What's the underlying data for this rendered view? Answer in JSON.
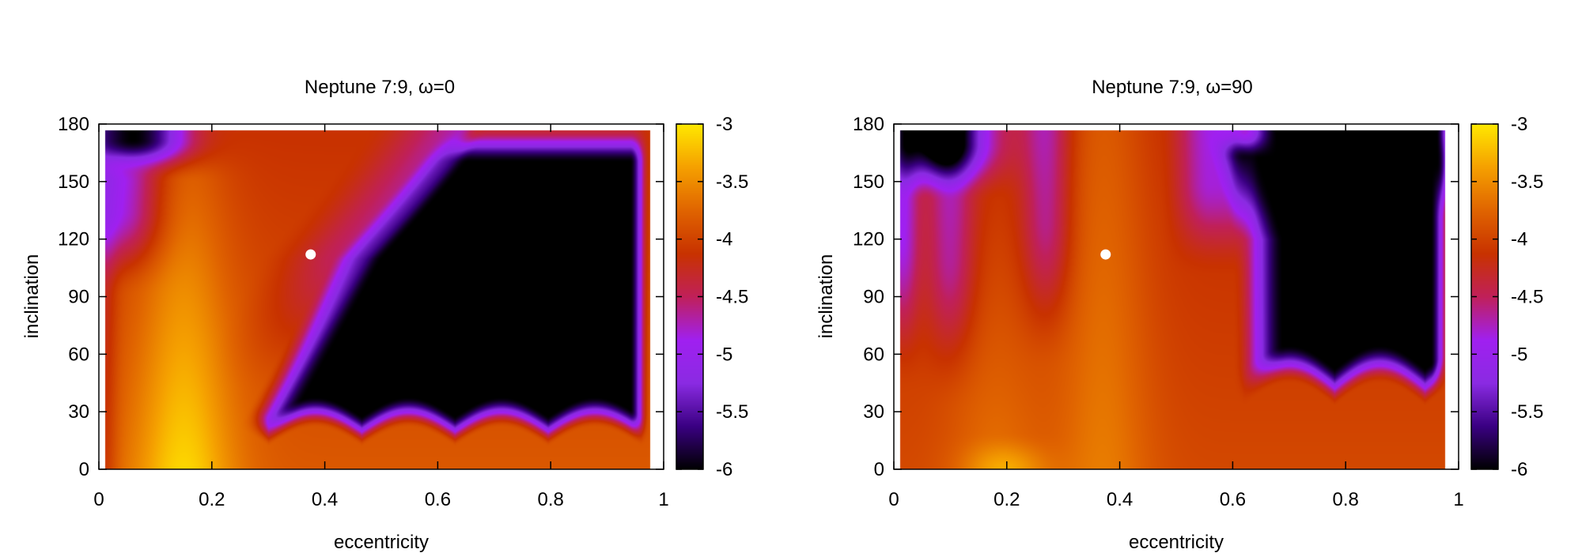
{
  "chart_data": [
    {
      "type": "heatmap",
      "title": "Neptune 7:9, ω=0",
      "xlabel": "eccentricity",
      "ylabel": "inclination",
      "xlim": [
        0,
        1
      ],
      "ylim": [
        0,
        180
      ],
      "xticks": [
        "0",
        "0.2",
        "0.4",
        "0.6",
        "0.8",
        "1"
      ],
      "yticks": [
        "0",
        "30",
        "60",
        "90",
        "120",
        "150",
        "180"
      ],
      "colorbar": {
        "range": [
          -6,
          -3
        ],
        "ticks": [
          "-3",
          "-3.5",
          "-4",
          "-4.5",
          "-5",
          "-5.5",
          "-6"
        ],
        "palette": [
          "#000000",
          "#3a0082",
          "#8a2be2",
          "#a020f0",
          "#c0205a",
          "#c83200",
          "#e06400",
          "#f5a000",
          "#ffe800"
        ]
      },
      "marker": {
        "x": 0.375,
        "y": 112,
        "color": "#ffffff"
      }
    },
    {
      "type": "heatmap",
      "title": "Neptune 7:9, ω=90",
      "xlabel": "eccentricity",
      "ylabel": "inclination",
      "xlim": [
        0,
        1
      ],
      "ylim": [
        0,
        180
      ],
      "xticks": [
        "0",
        "0.2",
        "0.4",
        "0.6",
        "0.8",
        "1"
      ],
      "yticks": [
        "0",
        "30",
        "60",
        "90",
        "120",
        "150",
        "180"
      ],
      "colorbar": {
        "range": [
          -6,
          -3
        ],
        "ticks": [
          "-3",
          "-3.5",
          "-4",
          "-4.5",
          "-5",
          "-5.5",
          "-6"
        ],
        "palette": [
          "#000000",
          "#3a0082",
          "#8a2be2",
          "#a020f0",
          "#c0205a",
          "#c83200",
          "#e06400",
          "#f5a000",
          "#ffe800"
        ]
      },
      "marker": {
        "x": 0.375,
        "y": 112,
        "color": "#ffffff"
      }
    }
  ]
}
